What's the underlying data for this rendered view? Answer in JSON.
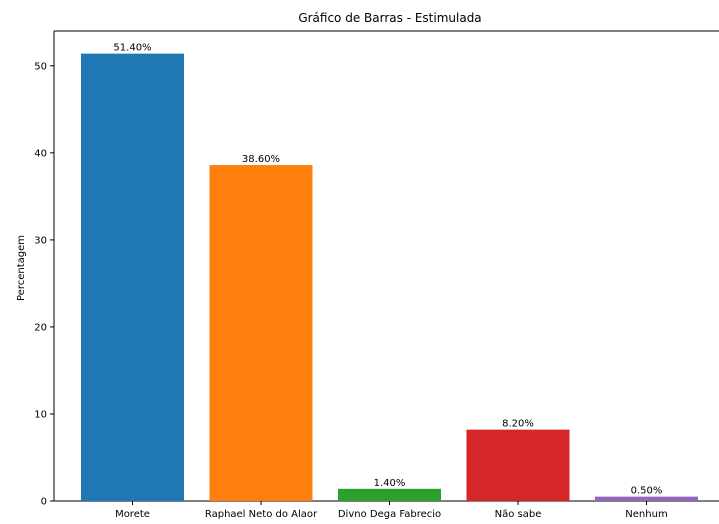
{
  "chart_data": {
    "type": "bar",
    "title": "Gráfico de Barras - Estimulada",
    "xlabel": "",
    "ylabel": "Percentagem",
    "ylim": [
      0,
      54
    ],
    "yticks": [
      0,
      10,
      20,
      30,
      40,
      50
    ],
    "categories": [
      "Morete",
      "Raphael Neto do Alaor",
      "Divno Dega Fabrecio",
      "Não sabe",
      "Nenhum"
    ],
    "values": [
      51.4,
      38.6,
      1.4,
      8.2,
      0.5
    ],
    "data_labels": [
      "51.40%",
      "38.60%",
      "1.40%",
      "8.20%",
      "0.50%"
    ],
    "colors": [
      "#1f77b4",
      "#ff7f0e",
      "#2ca02c",
      "#d62728",
      "#9467bd"
    ],
    "grid": false
  }
}
